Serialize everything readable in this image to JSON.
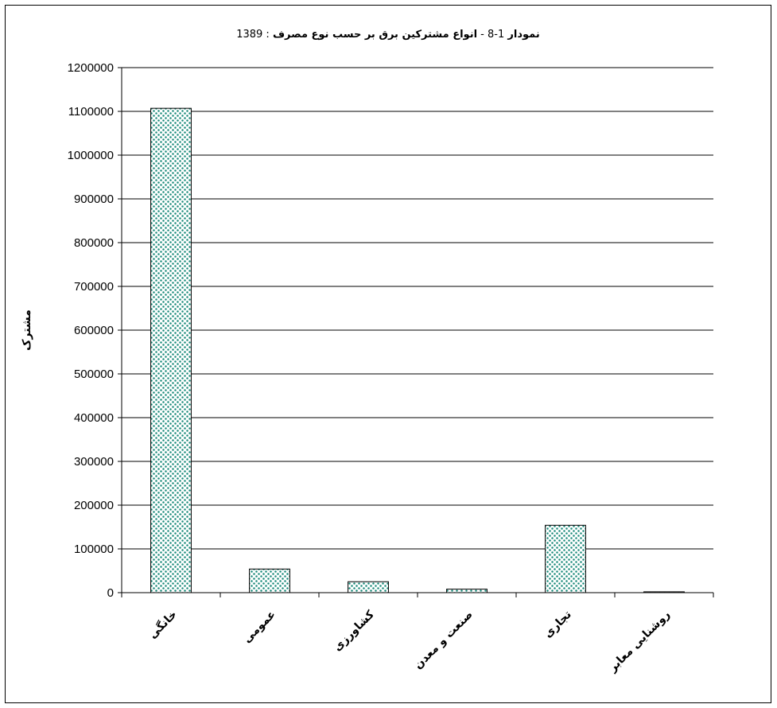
{
  "chart_data": {
    "type": "bar",
    "title": {
      "prefix": "نمودار",
      "number": " 1-8 - ",
      "main": "انواع مشترکین برق بر حسب نوع مصرف",
      "suffix": " : 1389"
    },
    "ylabel": "مشترک",
    "xlabel": "",
    "ylim": [
      0,
      1200000
    ],
    "ytick_step": 100000,
    "grid": true,
    "bar_fill": "#1a8a7a",
    "categories": [
      "خانگی",
      "عمومی",
      "کشاورزی",
      "صنعت و معدن",
      "تجاری",
      "روشنایی معابر"
    ],
    "values": [
      1107000,
      54000,
      25000,
      8000,
      154000,
      2000
    ]
  }
}
